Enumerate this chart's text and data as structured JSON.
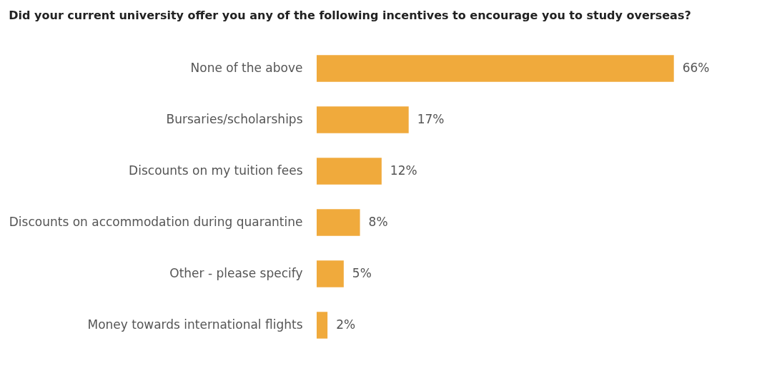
{
  "chart_data": {
    "type": "bar",
    "orientation": "horizontal",
    "title": "Did your current university offer you any of the following incentives to encourage you to study overseas?",
    "categories": [
      "None of the above",
      "Bursaries/scholarships",
      "Discounts on my tuition fees",
      "Discounts on accommodation during quarantine",
      "Other - please specify",
      "Money towards international flights"
    ],
    "values": [
      66,
      17,
      12,
      8,
      5,
      2
    ],
    "value_labels": [
      "66%",
      "17%",
      "12%",
      "8%",
      "5%",
      "2%"
    ],
    "color": "#f0aa3c",
    "grid": false,
    "tick_labels": "y"
  }
}
